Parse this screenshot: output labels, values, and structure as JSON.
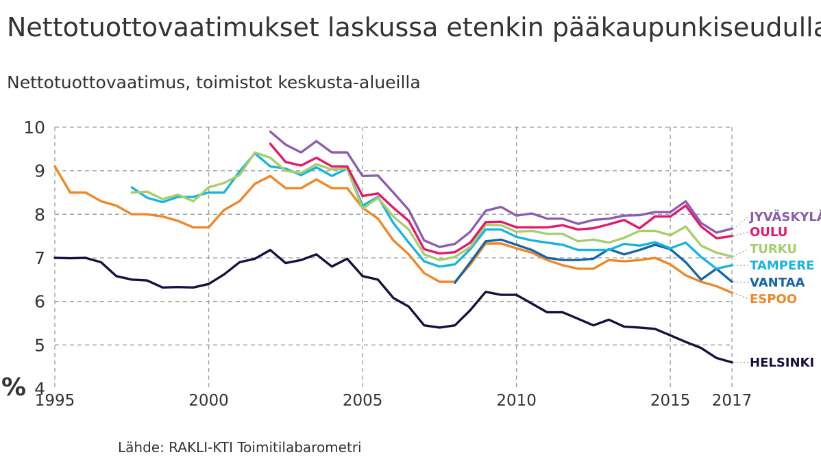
{
  "title": "Nettotuottovaatimukset laskussa etenkin pääkaupunkiseudulla",
  "subtitle": "Nettotuottovaatimus, toimistot keskusta-alueilla",
  "source": "Lähde: RAKLI-KTI Toimitilabarometri",
  "chart_data": {
    "type": "line",
    "y_unit": "%",
    "ylim": [
      4,
      10
    ],
    "xlim": [
      1995,
      2017
    ],
    "y_ticks": [
      "4",
      "5",
      "6",
      "7",
      "8",
      "9",
      "10"
    ],
    "x_ticks": [
      "1995",
      "2000",
      "2005",
      "2010",
      "2015",
      "2017"
    ],
    "grid": true,
    "legend": "labels at right end of lines",
    "series": [
      {
        "name": "JYVÄSKYLÄ",
        "color": "#8b5cb2",
        "x": [
          2002,
          2002.5,
          2003,
          2003.5,
          2004,
          2004.5,
          2005,
          2005.5,
          2006,
          2006.5,
          2007,
          2007.5,
          2008,
          2008.5,
          2009,
          2009.5,
          2010,
          2010.5,
          2011,
          2011.5,
          2012,
          2012.5,
          2013,
          2013.5,
          2014,
          2014.5,
          2015,
          2015.5,
          2016,
          2016.5,
          2017
        ],
        "y": [
          9.9,
          9.6,
          9.42,
          9.68,
          9.42,
          9.42,
          8.88,
          8.89,
          8.5,
          8.1,
          7.4,
          7.25,
          7.32,
          7.6,
          8.08,
          8.17,
          7.97,
          8.02,
          7.9,
          7.9,
          7.78,
          7.87,
          7.9,
          7.97,
          7.98,
          8.05,
          8.05,
          8.3,
          7.8,
          7.58,
          7.67
        ]
      },
      {
        "name": "OULU",
        "color": "#e5176b",
        "x": [
          2002,
          2002.5,
          2003,
          2003.5,
          2004,
          2004.5,
          2005,
          2005.5,
          2006,
          2006.5,
          2007,
          2007.5,
          2008,
          2008.5,
          2009,
          2009.5,
          2010,
          2010.5,
          2011,
          2011.5,
          2012,
          2012.5,
          2013,
          2013.5,
          2014,
          2014.5,
          2015,
          2015.5,
          2016,
          2016.5,
          2017
        ],
        "y": [
          9.62,
          9.2,
          9.12,
          9.3,
          9.1,
          9.1,
          8.42,
          8.48,
          8.15,
          7.85,
          7.2,
          7.1,
          7.13,
          7.35,
          7.82,
          7.83,
          7.7,
          7.7,
          7.7,
          7.75,
          7.65,
          7.68,
          7.77,
          7.87,
          7.68,
          7.95,
          7.95,
          8.2,
          7.72,
          7.45,
          7.5
        ]
      },
      {
        "name": "TURKU",
        "color": "#a4cf6b",
        "x": [
          1997.5,
          1998,
          1998.5,
          1999,
          1999.5,
          2000,
          2000.5,
          2001,
          2001.5,
          2002,
          2002.5,
          2003,
          2003.5,
          2004,
          2004.5,
          2005,
          2005.5,
          2006,
          2006.5,
          2007,
          2007.5,
          2008,
          2008.5,
          2009,
          2009.5,
          2010,
          2010.5,
          2011,
          2011.5,
          2012,
          2012.5,
          2013,
          2013.5,
          2014,
          2014.5,
          2015,
          2015.5,
          2016,
          2016.5,
          2017
        ],
        "y": [
          8.5,
          8.52,
          8.35,
          8.45,
          8.3,
          8.62,
          8.72,
          8.9,
          9.42,
          9.3,
          9.0,
          8.95,
          9.15,
          9.03,
          9.05,
          8.13,
          8.38,
          7.95,
          7.65,
          7.08,
          6.95,
          7.02,
          7.25,
          7.76,
          7.75,
          7.6,
          7.62,
          7.55,
          7.55,
          7.38,
          7.42,
          7.35,
          7.46,
          7.62,
          7.62,
          7.52,
          7.72,
          7.28,
          7.12,
          7.03
        ]
      },
      {
        "name": "TAMPERE",
        "color": "#18b4e0",
        "x": [
          1997.5,
          1998,
          1998.5,
          1999,
          1999.5,
          2000,
          2000.5,
          2001,
          2001.5,
          2002,
          2002.5,
          2003,
          2003.5,
          2004,
          2004.5,
          2005,
          2005.5,
          2006,
          2006.5,
          2007,
          2007.5,
          2008,
          2008.5,
          2009,
          2009.5,
          2010,
          2010.5,
          2011,
          2011.5,
          2012,
          2012.5,
          2013,
          2013.5,
          2014,
          2014.5,
          2015,
          2015.5,
          2016,
          2016.5,
          2017
        ],
        "y": [
          8.62,
          8.38,
          8.28,
          8.4,
          8.4,
          8.5,
          8.5,
          8.98,
          9.4,
          9.1,
          9.05,
          8.9,
          9.08,
          8.88,
          9.05,
          8.2,
          8.4,
          7.8,
          7.35,
          6.92,
          6.8,
          6.85,
          7.2,
          7.65,
          7.65,
          7.48,
          7.4,
          7.35,
          7.3,
          7.18,
          7.18,
          7.18,
          7.32,
          7.28,
          7.36,
          7.22,
          7.35,
          7.02,
          6.75,
          6.83
        ]
      },
      {
        "name": "VANTAA",
        "color": "#1565a8",
        "x": [
          2008,
          2008.5,
          2009,
          2009.5,
          2010,
          2010.5,
          2011,
          2011.5,
          2012,
          2012.5,
          2013,
          2013.5,
          2014,
          2014.5,
          2015,
          2015.5,
          2016,
          2016.5,
          2017
        ],
        "y": [
          6.43,
          6.9,
          7.38,
          7.42,
          7.3,
          7.18,
          7.0,
          6.95,
          6.95,
          6.98,
          7.2,
          7.08,
          7.18,
          7.3,
          7.2,
          6.9,
          6.5,
          6.75,
          6.45
        ]
      },
      {
        "name": "ESPOO",
        "color": "#f08623",
        "x": [
          1995,
          1995.5,
          1996,
          1996.5,
          1997,
          1997.5,
          1998,
          1998.5,
          1999,
          1999.5,
          2000,
          2000.5,
          2001,
          2001.5,
          2002,
          2002.5,
          2003,
          2003.5,
          2004,
          2004.5,
          2005,
          2005.5,
          2006,
          2006.5,
          2007,
          2007.5,
          2008,
          2008.5,
          2009,
          2009.5,
          2010,
          2010.5,
          2011,
          2011.5,
          2012,
          2012.5,
          2013,
          2013.5,
          2014,
          2014.5,
          2015,
          2015.5,
          2016,
          2016.5,
          2017
        ],
        "y": [
          9.1,
          8.5,
          8.5,
          8.3,
          8.2,
          8.0,
          8.0,
          7.95,
          7.85,
          7.7,
          7.7,
          8.1,
          8.3,
          8.7,
          8.88,
          8.6,
          8.6,
          8.8,
          8.6,
          8.6,
          8.15,
          7.9,
          7.4,
          7.08,
          6.65,
          6.45,
          6.45,
          6.85,
          7.33,
          7.33,
          7.22,
          7.12,
          6.95,
          6.83,
          6.75,
          6.75,
          6.95,
          6.92,
          6.95,
          7.0,
          6.85,
          6.6,
          6.45,
          6.35,
          6.2
        ]
      },
      {
        "name": "HELSINKI",
        "color": "#14103f",
        "x": [
          1995,
          1995.5,
          1996,
          1996.5,
          1997,
          1997.5,
          1998,
          1998.5,
          1999,
          1999.5,
          2000,
          2000.5,
          2001,
          2001.5,
          2002,
          2002.5,
          2003,
          2003.5,
          2004,
          2004.5,
          2005,
          2005.5,
          2006,
          2006.5,
          2007,
          2007.5,
          2008,
          2008.5,
          2009,
          2009.5,
          2010,
          2010.5,
          2011,
          2011.5,
          2012,
          2012.5,
          2013,
          2013.5,
          2014,
          2014.5,
          2015,
          2015.5,
          2016,
          2016.5,
          2017
        ],
        "y": [
          7.0,
          6.99,
          7.0,
          6.9,
          6.58,
          6.5,
          6.48,
          6.32,
          6.33,
          6.32,
          6.4,
          6.62,
          6.9,
          6.98,
          7.18,
          6.88,
          6.95,
          7.08,
          6.8,
          6.98,
          6.58,
          6.5,
          6.08,
          5.88,
          5.45,
          5.4,
          5.45,
          5.8,
          6.22,
          6.15,
          6.15,
          5.95,
          5.75,
          5.75,
          5.6,
          5.45,
          5.58,
          5.42,
          5.4,
          5.37,
          5.22,
          5.07,
          4.93,
          4.7,
          4.6
        ]
      }
    ]
  }
}
